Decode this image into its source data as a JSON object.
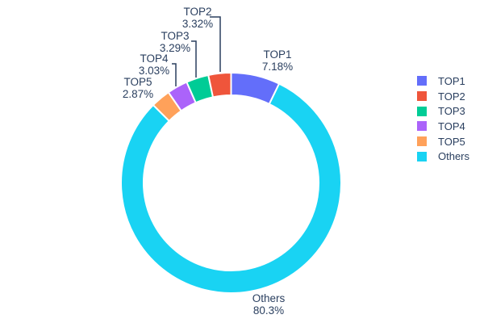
{
  "chart_data": {
    "type": "pie",
    "subtype": "donut",
    "donut_hole_ratio": 0.8,
    "title": "",
    "categories": [
      "TOP1",
      "TOP2",
      "TOP3",
      "TOP4",
      "TOP5",
      "Others"
    ],
    "values": [
      7.18,
      3.32,
      3.29,
      3.03,
      2.87,
      80.3
    ],
    "percent_labels": [
      "7.18%",
      "3.32%",
      "3.29%",
      "3.03%",
      "2.87%",
      "80.3%"
    ],
    "legend_position": "right",
    "slices": [
      {
        "label": "TOP1",
        "value": 7.18,
        "pct_text": "7.18%",
        "color": "#636EFA"
      },
      {
        "label": "Others",
        "value": 80.3,
        "pct_text": "80.3%",
        "color": "#19D3F3"
      },
      {
        "label": "TOP5",
        "value": 2.87,
        "pct_text": "2.87%",
        "color": "#FFA15A"
      },
      {
        "label": "TOP4",
        "value": 3.03,
        "pct_text": "3.03%",
        "color": "#AB63FA"
      },
      {
        "label": "TOP3",
        "value": 3.29,
        "pct_text": "3.29%",
        "color": "#00CC96"
      },
      {
        "label": "TOP2",
        "value": 3.32,
        "pct_text": "3.32%",
        "color": "#EF553B"
      }
    ],
    "legend": {
      "items": [
        {
          "label": "TOP1",
          "color": "#636EFA"
        },
        {
          "label": "TOP2",
          "color": "#EF553B"
        },
        {
          "label": "TOP3",
          "color": "#00CC96"
        },
        {
          "label": "TOP4",
          "color": "#AB63FA"
        },
        {
          "label": "TOP5",
          "color": "#FFA15A"
        },
        {
          "label": "Others",
          "color": "#19D3F3"
        }
      ]
    }
  },
  "colors": {
    "text": "#2a3f5f",
    "background": "#ffffff",
    "slice_border": "#ffffff",
    "leader_line": "#2a3f5f"
  }
}
